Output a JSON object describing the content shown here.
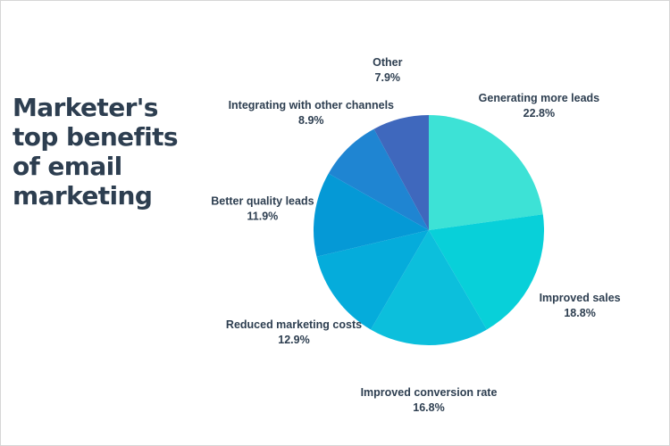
{
  "title_lines": [
    "Marketer's",
    "top benefits",
    "of email",
    "marketing"
  ],
  "chart_data": {
    "type": "pie",
    "title": "Marketer's top benefits of email marketing",
    "unit": "%",
    "slices": [
      {
        "label": "Generating more leads",
        "value": 22.8,
        "display": "22.8%",
        "color": "#3de2d6"
      },
      {
        "label": "Improved sales",
        "value": 18.8,
        "display": "18.8%",
        "color": "#08d0d9"
      },
      {
        "label": "Improved conversion rate",
        "value": 16.8,
        "display": "16.8%",
        "color": "#0cbfdc"
      },
      {
        "label": "Reduced marketing costs",
        "value": 12.9,
        "display": "12.9%",
        "color": "#05acdb"
      },
      {
        "label": "Better quality leads",
        "value": 11.9,
        "display": "11.9%",
        "color": "#0599d6"
      },
      {
        "label": "Integrating with other channels",
        "value": 8.9,
        "display": "8.9%",
        "color": "#1f85d2"
      },
      {
        "label": "Other",
        "value": 7.9,
        "display": "7.9%",
        "color": "#3f68bd"
      }
    ]
  }
}
